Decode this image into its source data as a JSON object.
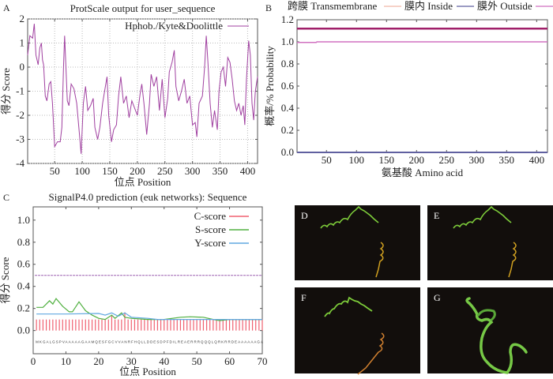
{
  "panels": {
    "a": "A",
    "b": "B",
    "c": "C",
    "d": "D",
    "e": "E",
    "f": "F",
    "g": "G"
  },
  "chart_data": [
    {
      "id": "A",
      "type": "line",
      "title": "ProtScale output for user_sequence",
      "xlabel": "位点 Position",
      "ylabel": "得分 Score",
      "xlim": [
        1,
        418
      ],
      "ylim": [
        -4,
        2
      ],
      "xticks": [
        50,
        100,
        150,
        200,
        250,
        300,
        350,
        400
      ],
      "yticks": [
        -4,
        -3,
        -2,
        -1,
        0,
        1,
        2
      ],
      "grid": true,
      "legend": "top-right",
      "series": [
        {
          "name": "Hphob./Kyte&Doolittle",
          "color": "#a040a0",
          "x": [
            1,
            5,
            10,
            13,
            16,
            20,
            23,
            26,
            28,
            30,
            33,
            36,
            40,
            43,
            46,
            50,
            55,
            60,
            63,
            66,
            68,
            70,
            73,
            76,
            80,
            85,
            90,
            95,
            98,
            102,
            106,
            110,
            115,
            120,
            123,
            128,
            132,
            137,
            142,
            145,
            148,
            153,
            157,
            162,
            166,
            170,
            175,
            180,
            185,
            190,
            195,
            200,
            205,
            208,
            212,
            217,
            222,
            225,
            230,
            235,
            240,
            245,
            250,
            255,
            258,
            263,
            267,
            270,
            275,
            280,
            285,
            290,
            295,
            300,
            305,
            308,
            312,
            318,
            322,
            325,
            328,
            332,
            336,
            340,
            345,
            348,
            352,
            356,
            360,
            364,
            368,
            372,
            376,
            380,
            384,
            388,
            392,
            395,
            398,
            402,
            405,
            408,
            411,
            414,
            418
          ],
          "y": [
            0.5,
            1.3,
            1.2,
            1.8,
            0.5,
            0.1,
            0.8,
            1.0,
            0.3,
            0.1,
            -1.2,
            -1.4,
            -0.7,
            -0.6,
            -1.5,
            -3.3,
            -3.1,
            -3.1,
            -2.5,
            0,
            1.3,
            0.2,
            -1.4,
            -1.6,
            -0.7,
            -0.9,
            -1.5,
            -2.8,
            -3.6,
            -1.5,
            -0.8,
            -1.8,
            -1.6,
            -1.3,
            -2.5,
            -3.0,
            -2.5,
            -1.5,
            -0.8,
            -0.4,
            -2.0,
            -3.1,
            -2.6,
            -2.4,
            -1.2,
            -0.4,
            -1.5,
            -1.2,
            -2.1,
            -1.4,
            -1.7,
            -2.0,
            -1.1,
            -0.7,
            -1.5,
            -2.8,
            -1.5,
            -0.3,
            -0.8,
            -0.4,
            -1.8,
            -0.5,
            -2.1,
            -1.3,
            -0.2,
            0.2,
            0.7,
            -0.8,
            -1.4,
            -1.0,
            -0.5,
            -1.5,
            -1.2,
            -2.4,
            -2.3,
            -2.9,
            -1.5,
            -1.2,
            0,
            1.3,
            0.2,
            -1.5,
            -2.5,
            -1.8,
            -2.6,
            -1.0,
            -0.2,
            0,
            -0.8,
            0.4,
            0.2,
            -0.5,
            -1.4,
            -1.8,
            -1.5,
            -2.0,
            -1.6,
            -2.4,
            -0.5,
            1.1,
            0.5,
            -1.5,
            -2.2,
            -1.0,
            -0.4
          ]
        }
      ]
    },
    {
      "id": "B",
      "type": "line",
      "xlabel": "氨基酸 Amino acid",
      "ylabel": "概率/% Probability",
      "xlim": [
        1,
        418
      ],
      "ylim": [
        0,
        1.2
      ],
      "xticks": [
        50,
        100,
        150,
        200,
        250,
        300,
        350,
        400
      ],
      "yticks": [
        "0.0",
        "0.2",
        "0.4",
        "0.6",
        "0.8",
        "1.0",
        "1.2"
      ],
      "legend": "top",
      "series": [
        {
          "name": "跨膜 Transmembrane",
          "color": "#f0b8a8",
          "x": [
            1,
            418
          ],
          "y": [
            0,
            0
          ]
        },
        {
          "name": "膜内 Inside",
          "color": "#6060a0",
          "x": [
            1,
            418
          ],
          "y": [
            0,
            0
          ]
        },
        {
          "name": "膜外 Outside",
          "color": "#d070c0",
          "x": [
            1,
            33,
            34,
            418
          ],
          "y": [
            0.995,
            0.995,
            1.0,
            1.0
          ]
        },
        {
          "name": "",
          "color": "#a0206a",
          "x": [
            1,
            418
          ],
          "y": [
            1.12,
            1.12
          ]
        }
      ]
    },
    {
      "id": "C",
      "type": "line",
      "title": "SignalP4.0 prediction (euk networks): Sequence",
      "xlabel": "位点 Position",
      "ylabel": "得分 Score",
      "xlim": [
        0,
        70
      ],
      "ylim": [
        -0.21,
        1.12
      ],
      "xticks": [
        0,
        10,
        20,
        30,
        40,
        50,
        60,
        70
      ],
      "yticks": [
        "0.0",
        "0.2",
        "0.4",
        "0.6",
        "0.8",
        "1.0"
      ],
      "threshold": 0.5,
      "legend": "top-right",
      "sequence": "MKGALGSPVAAAAAGAAMQESFGCVVANRFHQLLDDESDPFDILREAERRRQQQLQRKRRDEAAAAAAGA",
      "series": [
        {
          "name": "C-score",
          "color": "#f06070",
          "type": "bar",
          "default": 0.1,
          "overrides": {
            "24": 0.14,
            "28": 0.165
          }
        },
        {
          "name": "S-score",
          "color": "#50b040",
          "x": [
            1,
            3,
            5,
            6,
            7,
            9,
            11,
            12,
            14,
            16,
            18,
            20,
            22,
            24,
            25,
            27,
            28,
            30,
            35,
            40,
            45,
            48,
            52,
            55,
            57,
            60,
            70
          ],
          "y": [
            0.21,
            0.21,
            0.27,
            0.24,
            0.29,
            0.22,
            0.17,
            0.17,
            0.26,
            0.18,
            0.14,
            0.11,
            0.1,
            0.14,
            0.11,
            0.16,
            0.12,
            0.11,
            0.1,
            0.1,
            0.12,
            0.125,
            0.12,
            0.1,
            0.09,
            0.1,
            0.1
          ]
        },
        {
          "name": "Y-score",
          "color": "#60a8e0",
          "x": [
            1,
            10,
            20,
            22,
            24,
            26,
            28,
            30,
            35,
            38,
            70
          ],
          "y": [
            0.15,
            0.15,
            0.155,
            0.14,
            0.16,
            0.13,
            0.16,
            0.12,
            0.11,
            0.1,
            0.1
          ]
        }
      ]
    }
  ]
}
